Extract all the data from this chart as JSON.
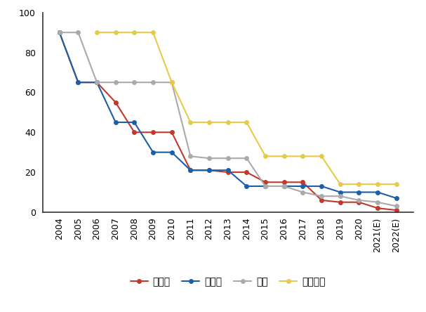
{
  "years": [
    "2004",
    "2005",
    "2006",
    "2007",
    "2008",
    "2009",
    "2010",
    "2011",
    "2012",
    "2013",
    "2014",
    "2015",
    "2016",
    "2017",
    "2018",
    "2019",
    "2020",
    "2021(E)",
    "2022(E)"
  ],
  "tsmc": [
    90,
    65,
    65,
    55,
    40,
    40,
    40,
    21,
    21,
    20,
    20,
    15,
    15,
    15,
    6,
    5,
    5,
    2,
    1
  ],
  "intel": [
    90,
    65,
    65,
    45,
    45,
    30,
    30,
    21,
    21,
    21,
    13,
    13,
    13,
    13,
    13,
    10,
    10,
    10,
    7
  ],
  "samsung": [
    90,
    90,
    65,
    65,
    65,
    65,
    65,
    28,
    27,
    27,
    27,
    13,
    13,
    10,
    8,
    8,
    6,
    5,
    3
  ],
  "smic": [
    null,
    null,
    90,
    90,
    90,
    90,
    65,
    45,
    45,
    45,
    45,
    28,
    28,
    28,
    28,
    14,
    14,
    14,
    14
  ],
  "tsmc_color": "#c0392b",
  "intel_color": "#1a5fa8",
  "samsung_color": "#aaaaaa",
  "smic_color": "#e8c94a",
  "legend_labels": [
    "台积电",
    "英特尔",
    "三星",
    "中芯国际"
  ],
  "ylim": [
    0,
    100
  ],
  "background_color": "#ffffff",
  "spine_color": "#333333",
  "tick_labelsize": 9,
  "legend_fontsize": 10
}
